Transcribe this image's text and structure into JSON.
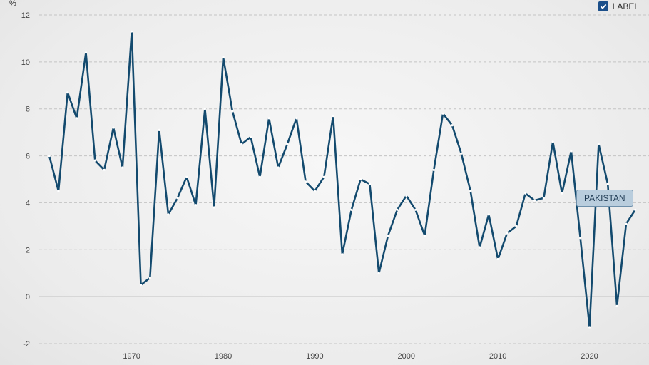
{
  "legend": {
    "label": "LABEL",
    "checked": true
  },
  "series_tag": "PAKISTAN",
  "chart_data": {
    "type": "line",
    "ylabel": "%",
    "ylim": [
      -2,
      12
    ],
    "yticks": [
      -2,
      0,
      2,
      4,
      6,
      8,
      10,
      12
    ],
    "xlim": [
      1959.9,
      2026.5
    ],
    "xticks": [
      1970,
      1980,
      1990,
      2000,
      2010,
      2020
    ],
    "grid": "horizontal-dashed",
    "color": "#134a6e",
    "series": [
      {
        "name": "PAKISTAN",
        "x": [
          1961,
          1962,
          1963,
          1964,
          1965,
          1966,
          1967,
          1968,
          1969,
          1970,
          1971,
          1972,
          1973,
          1974,
          1975,
          1976,
          1977,
          1978,
          1979,
          1980,
          1981,
          1982,
          1983,
          1984,
          1985,
          1986,
          1987,
          1988,
          1989,
          1990,
          1991,
          1992,
          1993,
          1994,
          1995,
          1996,
          1997,
          1998,
          1999,
          2000,
          2001,
          2002,
          2003,
          2004,
          2005,
          2006,
          2007,
          2008,
          2009,
          2010,
          2011,
          2012,
          2013,
          2014,
          2015,
          2016,
          2017,
          2018,
          2019,
          2020,
          2021,
          2022,
          2023,
          2024,
          2025
        ],
        "values": [
          6.0,
          4.5,
          8.7,
          7.6,
          10.4,
          5.8,
          5.4,
          7.2,
          5.5,
          11.3,
          0.5,
          0.8,
          7.1,
          3.5,
          4.2,
          5.1,
          3.9,
          8.0,
          3.8,
          10.2,
          7.9,
          6.5,
          6.8,
          5.1,
          7.6,
          5.5,
          6.5,
          7.6,
          4.9,
          4.5,
          5.1,
          7.7,
          1.8,
          3.7,
          5.0,
          4.8,
          1.0,
          2.6,
          3.7,
          4.3,
          3.7,
          2.6,
          5.4,
          7.8,
          7.3,
          6.1,
          4.5,
          2.1,
          3.5,
          1.6,
          2.7,
          3.0,
          4.4,
          4.1,
          4.2,
          6.6,
          4.4,
          6.2,
          2.5,
          -1.3,
          6.5,
          4.8,
          -0.4,
          3.1,
          3.7
        ]
      }
    ]
  }
}
